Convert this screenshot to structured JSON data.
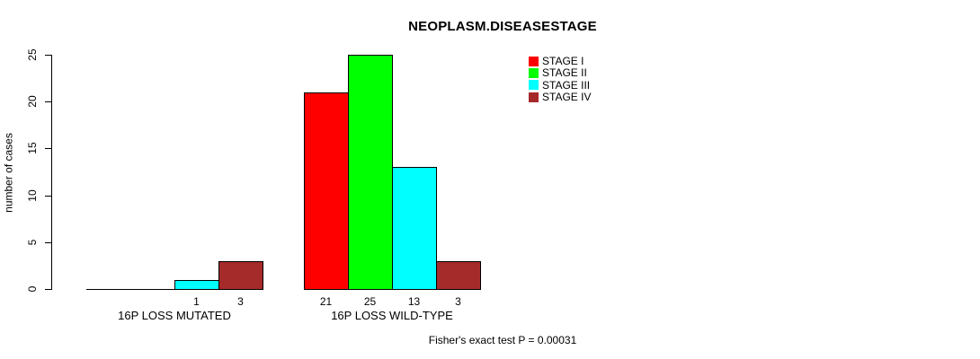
{
  "chart_data": {
    "type": "bar",
    "title": "NEOPLASM.DISEASESTAGE",
    "xlabel": "",
    "ylabel": "number of cases",
    "ylim": [
      0,
      25
    ],
    "yticks": [
      0,
      5,
      10,
      15,
      20,
      25
    ],
    "grid": false,
    "legend_position": "top-right",
    "categories": [
      "16P LOSS MUTATED",
      "16P LOSS WILD-TYPE"
    ],
    "series": [
      {
        "name": "STAGE I",
        "color": "#FF0000",
        "values": [
          0,
          21
        ]
      },
      {
        "name": "STAGE II",
        "color": "#00FF00",
        "values": [
          0,
          25
        ]
      },
      {
        "name": "STAGE III",
        "color": "#00FFFF",
        "values": [
          1,
          13
        ]
      },
      {
        "name": "STAGE IV",
        "color": "#A52A2A",
        "values": [
          3,
          3
        ]
      }
    ],
    "bar_value_labels": [
      [
        "",
        "",
        "1",
        "3"
      ],
      [
        "21",
        "25",
        "13",
        "3"
      ]
    ],
    "annotation": "Fisher's exact test P = 0.00031"
  }
}
